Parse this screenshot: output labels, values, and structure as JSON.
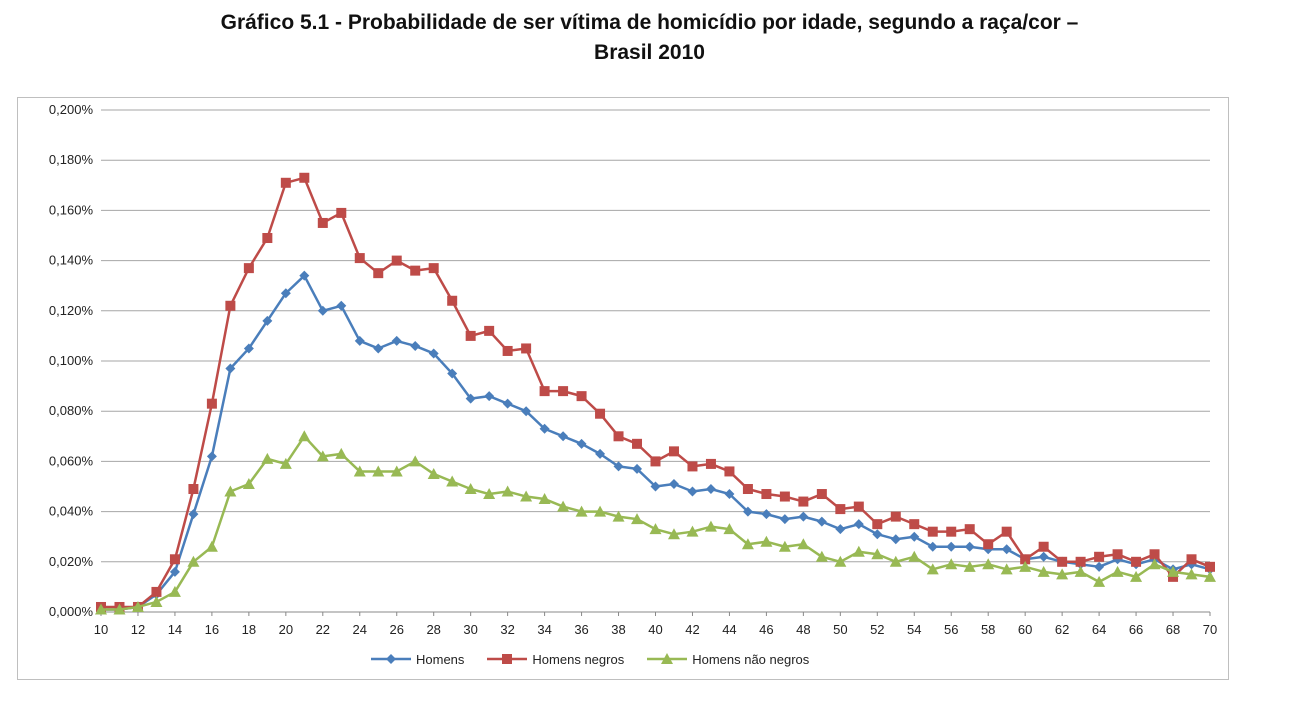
{
  "title": {
    "line1": "Gráfico 5.1 - Probabilidade de ser vítima de homicídio por idade, segundo a raça/cor –",
    "line2": "Brasil 2010"
  },
  "chart_data": {
    "type": "line",
    "title": "Gráfico 5.1 - Probabilidade de ser vítima de homicídio por idade, segundo a raça/cor – Brasil 2010",
    "xlabel": "",
    "ylabel": "",
    "x": [
      10,
      11,
      12,
      13,
      14,
      15,
      16,
      17,
      18,
      19,
      20,
      21,
      22,
      23,
      24,
      25,
      26,
      27,
      28,
      29,
      30,
      31,
      32,
      33,
      34,
      35,
      36,
      37,
      38,
      39,
      40,
      41,
      42,
      43,
      44,
      45,
      46,
      47,
      48,
      49,
      50,
      51,
      52,
      53,
      54,
      55,
      56,
      57,
      58,
      59,
      60,
      61,
      62,
      63,
      64,
      65,
      66,
      67,
      68,
      69,
      70
    ],
    "x_tick_labels": [
      "10",
      "12",
      "14",
      "16",
      "18",
      "20",
      "22",
      "24",
      "26",
      "28",
      "30",
      "32",
      "34",
      "36",
      "38",
      "40",
      "42",
      "44",
      "46",
      "48",
      "50",
      "52",
      "54",
      "56",
      "58",
      "60",
      "62",
      "64",
      "66",
      "68",
      "70"
    ],
    "xlim": [
      10,
      70
    ],
    "ylim": [
      0,
      0.2
    ],
    "y_ticks": [
      0,
      0.02,
      0.04,
      0.06,
      0.08,
      0.1,
      0.12,
      0.14,
      0.16,
      0.18,
      0.2
    ],
    "y_tick_labels": [
      "0,000%",
      "0,020%",
      "0,040%",
      "0,060%",
      "0,080%",
      "0,100%",
      "0,120%",
      "0,140%",
      "0,160%",
      "0,180%",
      "0,200%"
    ],
    "grid": "horizontal",
    "legend_position": "bottom",
    "series": [
      {
        "name": "Homens",
        "color": "#4a7ebb",
        "marker": "diamond",
        "values": [
          0.001,
          0.001,
          0.002,
          0.007,
          0.016,
          0.039,
          0.062,
          0.097,
          0.105,
          0.116,
          0.127,
          0.134,
          0.12,
          0.122,
          0.108,
          0.105,
          0.108,
          0.106,
          0.103,
          0.095,
          0.085,
          0.086,
          0.083,
          0.08,
          0.073,
          0.07,
          0.067,
          0.063,
          0.058,
          0.057,
          0.05,
          0.051,
          0.048,
          0.049,
          0.047,
          0.04,
          0.039,
          0.037,
          0.038,
          0.036,
          0.033,
          0.035,
          0.031,
          0.029,
          0.03,
          0.026,
          0.026,
          0.026,
          0.025,
          0.025,
          0.021,
          0.022,
          0.02,
          0.019,
          0.018,
          0.021,
          0.019,
          0.021,
          0.017,
          0.019,
          0.017
        ]
      },
      {
        "name": "Homens negros",
        "color": "#be4b48",
        "marker": "square",
        "values": [
          0.002,
          0.002,
          0.002,
          0.008,
          0.021,
          0.049,
          0.083,
          0.122,
          0.137,
          0.149,
          0.171,
          0.173,
          0.155,
          0.159,
          0.141,
          0.135,
          0.14,
          0.136,
          0.137,
          0.124,
          0.11,
          0.112,
          0.104,
          0.105,
          0.088,
          0.088,
          0.086,
          0.079,
          0.07,
          0.067,
          0.06,
          0.064,
          0.058,
          0.059,
          0.056,
          0.049,
          0.047,
          0.046,
          0.044,
          0.047,
          0.041,
          0.042,
          0.035,
          0.038,
          0.035,
          0.032,
          0.032,
          0.033,
          0.027,
          0.032,
          0.021,
          0.026,
          0.02,
          0.02,
          0.022,
          0.023,
          0.02,
          0.023,
          0.014,
          0.021,
          0.018
        ]
      },
      {
        "name": "Homens não negros",
        "color": "#98b954",
        "marker": "triangle",
        "values": [
          0.001,
          0.001,
          0.002,
          0.004,
          0.008,
          0.02,
          0.026,
          0.048,
          0.051,
          0.061,
          0.059,
          0.07,
          0.062,
          0.063,
          0.056,
          0.056,
          0.056,
          0.06,
          0.055,
          0.052,
          0.049,
          0.047,
          0.048,
          0.046,
          0.045,
          0.042,
          0.04,
          0.04,
          0.038,
          0.037,
          0.033,
          0.031,
          0.032,
          0.034,
          0.033,
          0.027,
          0.028,
          0.026,
          0.027,
          0.022,
          0.02,
          0.024,
          0.023,
          0.02,
          0.022,
          0.017,
          0.019,
          0.018,
          0.019,
          0.017,
          0.018,
          0.016,
          0.015,
          0.016,
          0.012,
          0.016,
          0.014,
          0.019,
          0.016,
          0.015,
          0.014
        ]
      }
    ]
  }
}
